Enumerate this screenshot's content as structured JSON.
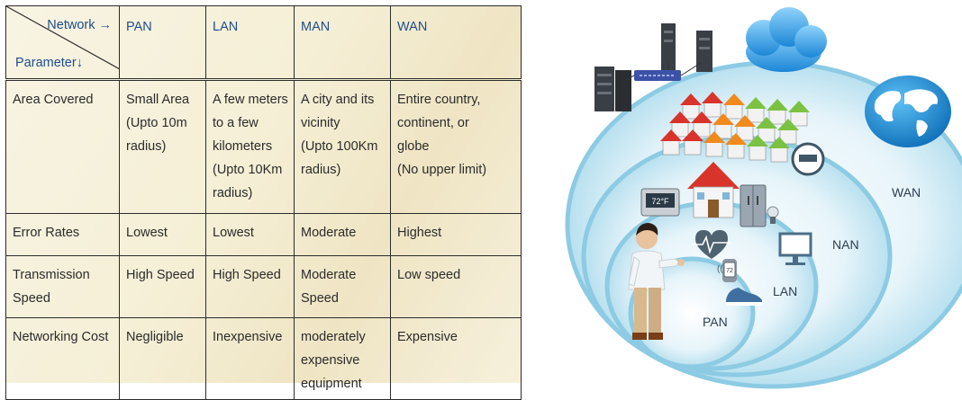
{
  "table": {
    "corner_network": "Network",
    "corner_parameter": "Parameter",
    "columns": [
      "PAN",
      "LAN",
      "MAN",
      "WAN"
    ],
    "rows": [
      {
        "parameter": "Area Covered",
        "cells": [
          [
            "Small Area",
            "(Upto 10m",
            "radius)"
          ],
          [
            "A few meters",
            "to a few",
            "kilometers",
            "(Upto 10Km",
            "radius)"
          ],
          [
            "A city and its",
            "vicinity",
            "(Upto 100Km",
            "radius)"
          ],
          [
            "Entire country,",
            "continent, or",
            "globe",
            "(No upper limit)"
          ]
        ]
      },
      {
        "parameter": "Error Rates",
        "cells": [
          [
            "Lowest"
          ],
          [
            "Lowest"
          ],
          [
            "Moderate"
          ],
          [
            "Highest"
          ]
        ]
      },
      {
        "parameter_lines": [
          "Transmission",
          "Speed"
        ],
        "cells": [
          [
            "High Speed"
          ],
          [
            "High Speed"
          ],
          [
            "Moderate",
            "Speed"
          ],
          [
            "Low speed"
          ]
        ]
      },
      {
        "parameter": "Networking Cost",
        "cells": [
          [
            "Negligible"
          ],
          [
            "Inexpensive"
          ],
          [
            "moderately",
            "expensive",
            "equipment"
          ],
          [
            "Expensive"
          ]
        ]
      }
    ]
  },
  "diagram": {
    "labels": {
      "pan": "PAN",
      "lan": "LAN",
      "nan": "NAN",
      "wan": "WAN"
    },
    "thermostat_text": "72°F",
    "watch_text": "72",
    "colors": {
      "ring_fill": "#d9eef6",
      "ring_edge": "#8ccbe3",
      "cloud": "#3aa3e8",
      "globe": "#1f8fd6"
    }
  }
}
